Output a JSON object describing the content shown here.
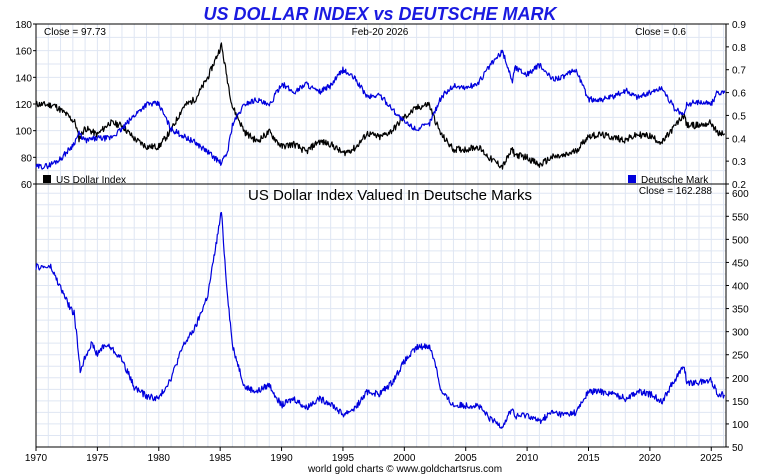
{
  "chart_data": [
    {
      "type": "line",
      "title": "US DOLLAR INDEX vs DEUTSCHE MARK",
      "date_label": "Feb-20  2026",
      "left_close_label": "Close = 97.73",
      "right_close_label": "Close = 0.6",
      "left_axis": {
        "min": 60,
        "max": 180,
        "ticks": [
          "60",
          "80",
          "100",
          "120",
          "140",
          "160",
          "180"
        ]
      },
      "right_axis": {
        "min": 0.2,
        "max": 0.9,
        "ticks": [
          "0.2",
          "0.3",
          "0.4",
          "0.5",
          "0.6",
          "0.7",
          "0.8",
          "0.9"
        ]
      },
      "x_range": [
        1970,
        2026.2
      ],
      "series": [
        {
          "name": "US Dollar Index",
          "axis": "left",
          "color": "#000000",
          "points": [
            [
              1970,
              120
            ],
            [
              1971.5,
              119
            ],
            [
              1972.5,
              112
            ],
            [
              1973.2,
              106
            ],
            [
              1973.5,
              94
            ],
            [
              1974,
              102
            ],
            [
              1975,
              97
            ],
            [
              1976,
              106
            ],
            [
              1977,
              104
            ],
            [
              1978,
              94
            ],
            [
              1979,
              88
            ],
            [
              1980,
              88
            ],
            [
              1981,
              100
            ],
            [
              1982,
              118
            ],
            [
              1983,
              124
            ],
            [
              1984,
              140
            ],
            [
              1985.1,
              164
            ],
            [
              1985.6,
              138
            ],
            [
              1986,
              118
            ],
            [
              1987,
              99
            ],
            [
              1988,
              92
            ],
            [
              1989,
              99
            ],
            [
              1990,
              88
            ],
            [
              1991,
              90
            ],
            [
              1992,
              84
            ],
            [
              1993,
              92
            ],
            [
              1994,
              90
            ],
            [
              1995,
              83
            ],
            [
              1996,
              87
            ],
            [
              1997,
              98
            ],
            [
              1998,
              95
            ],
            [
              1999,
              100
            ],
            [
              2000,
              110
            ],
            [
              2001,
              117
            ],
            [
              2002,
              120
            ],
            [
              2002.5,
              108
            ],
            [
              2003,
              97
            ],
            [
              2004,
              86
            ],
            [
              2005,
              86
            ],
            [
              2006,
              88
            ],
            [
              2007,
              79
            ],
            [
              2008,
              73
            ],
            [
              2008.8,
              86
            ],
            [
              2009,
              82
            ],
            [
              2010,
              80
            ],
            [
              2011,
              74
            ],
            [
              2012,
              80
            ],
            [
              2013,
              81
            ],
            [
              2014,
              85
            ],
            [
              2015,
              96
            ],
            [
              2016,
              97
            ],
            [
              2017,
              95
            ],
            [
              2018,
              93
            ],
            [
              2019,
              97
            ],
            [
              2020,
              96
            ],
            [
              2021,
              91
            ],
            [
              2022,
              103
            ],
            [
              2022.8,
              112
            ],
            [
              2023,
              104
            ],
            [
              2024,
              104
            ],
            [
              2025,
              106
            ],
            [
              2025.5,
              98
            ],
            [
              2026.1,
              97.73
            ]
          ]
        },
        {
          "name": "Deutsche Mark",
          "axis": "right",
          "color": "#0000dd",
          "points": [
            [
              1970,
              0.274
            ],
            [
              1971,
              0.28
            ],
            [
              1972,
              0.31
            ],
            [
              1973,
              0.37
            ],
            [
              1973.5,
              0.42
            ],
            [
              1974,
              0.39
            ],
            [
              1975,
              0.4
            ],
            [
              1976,
              0.4
            ],
            [
              1977,
              0.44
            ],
            [
              1978,
              0.5
            ],
            [
              1979,
              0.55
            ],
            [
              1980,
              0.55
            ],
            [
              1981,
              0.44
            ],
            [
              1982,
              0.41
            ],
            [
              1983,
              0.38
            ],
            [
              1984,
              0.34
            ],
            [
              1985.1,
              0.29
            ],
            [
              1985.6,
              0.34
            ],
            [
              1986,
              0.46
            ],
            [
              1987,
              0.55
            ],
            [
              1988,
              0.57
            ],
            [
              1989,
              0.54
            ],
            [
              1990,
              0.64
            ],
            [
              1991,
              0.6
            ],
            [
              1992,
              0.64
            ],
            [
              1993,
              0.6
            ],
            [
              1994,
              0.63
            ],
            [
              1995,
              0.7
            ],
            [
              1996,
              0.66
            ],
            [
              1997,
              0.58
            ],
            [
              1998,
              0.59
            ],
            [
              1999,
              0.53
            ],
            [
              2000,
              0.47
            ],
            [
              2001,
              0.44
            ],
            [
              2002,
              0.46
            ],
            [
              2003,
              0.58
            ],
            [
              2004,
              0.63
            ],
            [
              2005,
              0.62
            ],
            [
              2006,
              0.64
            ],
            [
              2007,
              0.72
            ],
            [
              2008,
              0.78
            ],
            [
              2008.8,
              0.65
            ],
            [
              2009,
              0.71
            ],
            [
              2010,
              0.68
            ],
            [
              2011,
              0.72
            ],
            [
              2012,
              0.66
            ],
            [
              2013,
              0.67
            ],
            [
              2014,
              0.7
            ],
            [
              2015,
              0.57
            ],
            [
              2016,
              0.57
            ],
            [
              2017,
              0.58
            ],
            [
              2018,
              0.61
            ],
            [
              2019,
              0.58
            ],
            [
              2020,
              0.6
            ],
            [
              2021,
              0.62
            ],
            [
              2022,
              0.53
            ],
            [
              2022.8,
              0.5
            ],
            [
              2023,
              0.55
            ],
            [
              2024,
              0.56
            ],
            [
              2025,
              0.55
            ],
            [
              2025.5,
              0.6
            ],
            [
              2026.1,
              0.6
            ]
          ]
        }
      ],
      "legend": [
        {
          "label": "US Dollar Index",
          "color": "#000000",
          "position": "bottom-left"
        },
        {
          "label": "Deutsche Mark",
          "color": "#0000dd",
          "position": "bottom-right"
        }
      ]
    },
    {
      "type": "line",
      "title": "US Dollar Index Valued In Deutsche Marks",
      "close_label": "Close = 162.288",
      "y_axis": {
        "min": 50,
        "max": 620,
        "side": "right",
        "ticks": [
          "50",
          "100",
          "150",
          "200",
          "250",
          "300",
          "350",
          "400",
          "450",
          "500",
          "550",
          "600"
        ]
      },
      "x_range": [
        1970,
        2026.2
      ],
      "x_ticks": [
        "1970",
        "1975",
        "1980",
        "1985",
        "1990",
        "1995",
        "2000",
        "2005",
        "2010",
        "2015",
        "2020",
        "2025"
      ],
      "series": [
        {
          "name": "US Dollar Index Valued In Deutsche Marks",
          "color": "#0000dd",
          "points": [
            [
              1970,
              440
            ],
            [
              1971.2,
              440
            ],
            [
              1972,
              395
            ],
            [
              1972.8,
              350
            ],
            [
              1973.1,
              340
            ],
            [
              1973.4,
              270
            ],
            [
              1973.6,
              215
            ],
            [
              1974,
              245
            ],
            [
              1974.5,
              275
            ],
            [
              1975,
              250
            ],
            [
              1975.5,
              270
            ],
            [
              1976,
              268
            ],
            [
              1977,
              240
            ],
            [
              1978,
              180
            ],
            [
              1979,
              160
            ],
            [
              1980,
              155
            ],
            [
              1981,
              200
            ],
            [
              1982,
              270
            ],
            [
              1983,
              310
            ],
            [
              1984,
              380
            ],
            [
              1985.1,
              560
            ],
            [
              1985.5,
              410
            ],
            [
              1986,
              270
            ],
            [
              1987,
              180
            ],
            [
              1988,
              170
            ],
            [
              1989,
              185
            ],
            [
              1990,
              140
            ],
            [
              1991,
              155
            ],
            [
              1992,
              135
            ],
            [
              1993,
              155
            ],
            [
              1994,
              145
            ],
            [
              1995,
              120
            ],
            [
              1996,
              135
            ],
            [
              1997,
              170
            ],
            [
              1998,
              165
            ],
            [
              1999,
              190
            ],
            [
              2000,
              235
            ],
            [
              2001,
              265
            ],
            [
              2002,
              270
            ],
            [
              2002.5,
              235
            ],
            [
              2003,
              170
            ],
            [
              2004,
              140
            ],
            [
              2005,
              140
            ],
            [
              2006,
              140
            ],
            [
              2007,
              110
            ],
            [
              2008,
              95
            ],
            [
              2008.8,
              135
            ],
            [
              2009,
              115
            ],
            [
              2010,
              120
            ],
            [
              2011,
              105
            ],
            [
              2012,
              125
            ],
            [
              2013,
              120
            ],
            [
              2014,
              125
            ],
            [
              2015,
              170
            ],
            [
              2016,
              170
            ],
            [
              2017,
              165
            ],
            [
              2018,
              155
            ],
            [
              2019,
              170
            ],
            [
              2020,
              165
            ],
            [
              2021,
              150
            ],
            [
              2022,
              195
            ],
            [
              2022.8,
              225
            ],
            [
              2023,
              190
            ],
            [
              2024,
              190
            ],
            [
              2025,
              195
            ],
            [
              2025.5,
              165
            ],
            [
              2026.1,
              162.288
            ]
          ]
        }
      ]
    }
  ],
  "footer": "world gold charts © www.goldchartsrus.com"
}
